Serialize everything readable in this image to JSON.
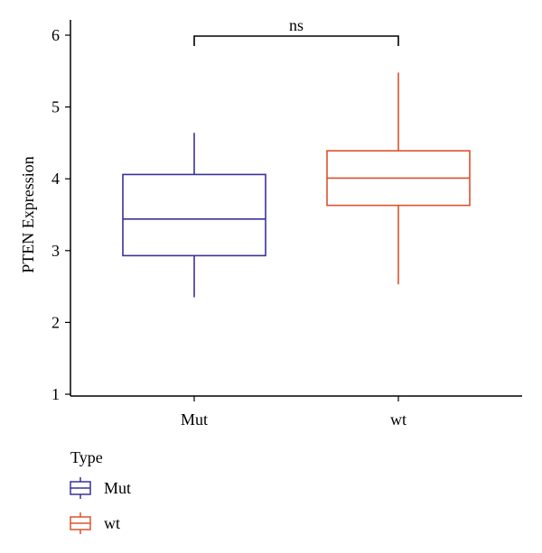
{
  "chart_data": {
    "type": "boxplot",
    "ylabel": "PTEN Expression",
    "xlabel": "",
    "ylim": [
      1,
      6
    ],
    "yticks": [
      1,
      2,
      3,
      4,
      5,
      6
    ],
    "categories": [
      "Mut",
      "wt"
    ],
    "boxes": [
      {
        "name": "Mut",
        "color": "#3b3197",
        "whisker_low": 2.35,
        "q1": 2.93,
        "median": 3.44,
        "q3": 4.06,
        "whisker_high": 4.64
      },
      {
        "name": "wt",
        "color": "#d9532e",
        "whisker_low": 2.53,
        "q1": 3.63,
        "median": 4.01,
        "q3": 4.39,
        "whisker_high": 5.48
      }
    ],
    "significance": {
      "label": "ns",
      "between": [
        "Mut",
        "wt"
      ]
    },
    "legend": {
      "title": "Type",
      "entries": [
        "Mut",
        "wt"
      ],
      "position": "bottom-left"
    },
    "grid": false
  }
}
